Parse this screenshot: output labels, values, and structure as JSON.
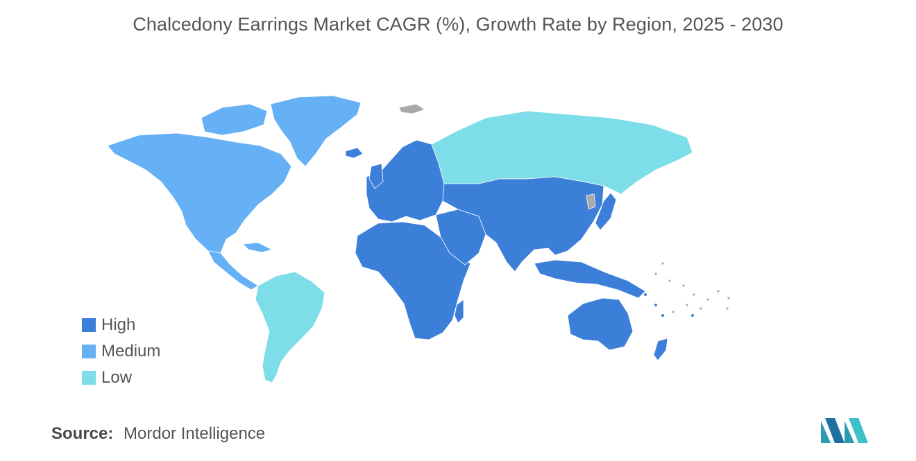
{
  "title": "Chalcedony Earrings Market CAGR (%), Growth Rate by Region, 2025 - 2030",
  "colors": {
    "high": "#3b7fd9",
    "medium": "#66b0f5",
    "low": "#7ddde8",
    "no_data": "#a9a9a9",
    "border": "#ffffff"
  },
  "legend": [
    {
      "label": "High",
      "color": "#3b7fd9"
    },
    {
      "label": "Medium",
      "color": "#66b0f5"
    },
    {
      "label": "Low",
      "color": "#7ddde8"
    }
  ],
  "regions": [
    {
      "name": "North America",
      "level": "Medium"
    },
    {
      "name": "Greenland",
      "level": "Medium"
    },
    {
      "name": "South America",
      "level": "Low"
    },
    {
      "name": "Russia",
      "level": "Low"
    },
    {
      "name": "Europe",
      "level": "High"
    },
    {
      "name": "Africa",
      "level": "High"
    },
    {
      "name": "Middle East",
      "level": "High"
    },
    {
      "name": "Asia",
      "level": "High"
    },
    {
      "name": "Australia & Oceania",
      "level": "High"
    }
  ],
  "source": {
    "label": "Source:",
    "text": "Mordor Intelligence"
  }
}
